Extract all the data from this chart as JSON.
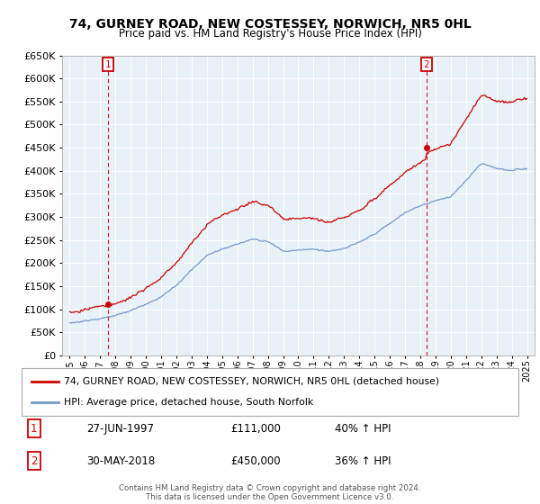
{
  "title": "74, GURNEY ROAD, NEW COSTESSEY, NORWICH, NR5 0HL",
  "subtitle": "Price paid vs. HM Land Registry's House Price Index (HPI)",
  "legend_line1": "74, GURNEY ROAD, NEW COSTESSEY, NORWICH, NR5 0HL (detached house)",
  "legend_line2": "HPI: Average price, detached house, South Norfolk",
  "annotation1_date": "27-JUN-1997",
  "annotation1_price": "£111,000",
  "annotation1_hpi": "40% ↑ HPI",
  "annotation2_date": "30-MAY-2018",
  "annotation2_price": "£450,000",
  "annotation2_hpi": "36% ↑ HPI",
  "ylim": [
    0,
    650000
  ],
  "xlim": [
    1994.5,
    2025.5
  ],
  "red_color": "#cc0000",
  "blue_color": "#7799cc",
  "chart_bg": "#e8f0f8",
  "footer": "Contains HM Land Registry data © Crown copyright and database right 2024.\nThis data is licensed under the Open Government Licence v3.0.",
  "sale1_year": 1997.49,
  "sale1_price": 111000,
  "sale2_year": 2018.41,
  "sale2_price": 450000,
  "hpi_years": [
    1995,
    1996,
    1997,
    1998,
    1999,
    2000,
    2001,
    2002,
    2003,
    2004,
    2005,
    2006,
    2007,
    2008,
    2009,
    2010,
    2011,
    2012,
    2013,
    2014,
    2015,
    2016,
    2017,
    2018,
    2019,
    2020,
    2021,
    2022,
    2023,
    2024,
    2025
  ],
  "hpi_values": [
    70000,
    75000,
    80000,
    88000,
    98000,
    112000,
    128000,
    152000,
    185000,
    215000,
    228000,
    238000,
    252000,
    248000,
    225000,
    228000,
    230000,
    225000,
    232000,
    245000,
    262000,
    285000,
    308000,
    322000,
    335000,
    342000,
    378000,
    415000,
    405000,
    400000,
    405000
  ]
}
